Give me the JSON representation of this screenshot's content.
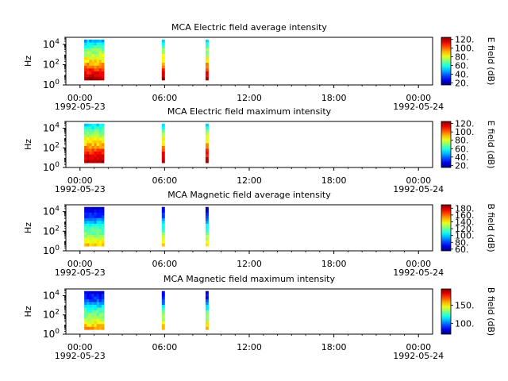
{
  "chart_data": [
    {
      "type": "heatmap",
      "title": "MCA  Electric field average intensity",
      "ylabel": "Hz",
      "yticks": [
        {
          "base": "10",
          "exp": "0"
        },
        {
          "base": "10",
          "exp": "2"
        },
        {
          "base": "10",
          "exp": "4"
        }
      ],
      "ylim_hz": [
        1,
        50000
      ],
      "yscale": "log",
      "xticks": [
        "00:00",
        "06:00",
        "12:00",
        "18:00",
        "00:00"
      ],
      "xdates": [
        "1992-05-23",
        "1992-05-24"
      ],
      "xlim_hours": [
        -1,
        25
      ],
      "colorbar_label": "E field (dB)",
      "colorbar_ticks": [
        "20.",
        "40.",
        "60.",
        "80.",
        "100.",
        "120."
      ],
      "colorbar_ticks_num": [
        20,
        40,
        60,
        80,
        100,
        120
      ],
      "colorbar_range": [
        15,
        125
      ],
      "segments": [
        {
          "start_hours": 0.3,
          "end_hours": 1.7,
          "freq_min_hz": 3,
          "freq_max_hz": 30000
        },
        {
          "start_hours": 5.8,
          "end_hours": 6.0,
          "freq_min_hz": 3,
          "freq_max_hz": 30000
        },
        {
          "start_hours": 8.9,
          "end_hours": 9.1,
          "freq_min_hz": 3,
          "freq_max_hz": 30000
        }
      ],
      "intensity_profile_db": [
        125,
        105,
        85,
        70,
        45
      ],
      "profile_freqs_hz": [
        3,
        30,
        300,
        3000,
        30000
      ]
    },
    {
      "type": "heatmap",
      "title": "MCA  Electric field maximum intensity",
      "ylabel": "Hz",
      "yticks": [
        {
          "base": "10",
          "exp": "0"
        },
        {
          "base": "10",
          "exp": "2"
        },
        {
          "base": "10",
          "exp": "4"
        }
      ],
      "ylim_hz": [
        1,
        50000
      ],
      "yscale": "log",
      "xticks": [
        "00:00",
        "06:00",
        "12:00",
        "18:00",
        "00:00"
      ],
      "xdates": [
        "1992-05-23",
        "1992-05-24"
      ],
      "xlim_hours": [
        -1,
        25
      ],
      "colorbar_label": "E field (dB)",
      "colorbar_ticks": [
        "20.",
        "40.",
        "60.",
        "80.",
        "100.",
        "120."
      ],
      "colorbar_ticks_num": [
        20,
        40,
        60,
        80,
        100,
        120
      ],
      "colorbar_range": [
        15,
        125
      ],
      "segments": [
        {
          "start_hours": 0.3,
          "end_hours": 1.7,
          "freq_min_hz": 3,
          "freq_max_hz": 30000
        },
        {
          "start_hours": 5.8,
          "end_hours": 6.0,
          "freq_min_hz": 3,
          "freq_max_hz": 30000
        },
        {
          "start_hours": 8.9,
          "end_hours": 9.1,
          "freq_min_hz": 3,
          "freq_max_hz": 30000
        }
      ],
      "intensity_profile_db": [
        125,
        108,
        88,
        72,
        50
      ],
      "profile_freqs_hz": [
        3,
        30,
        300,
        3000,
        30000
      ]
    },
    {
      "type": "heatmap",
      "title": "MCA  Magnetic field average intensity",
      "ylabel": "Hz",
      "yticks": [
        {
          "base": "10",
          "exp": "0"
        },
        {
          "base": "10",
          "exp": "2"
        },
        {
          "base": "10",
          "exp": "4"
        }
      ],
      "ylim_hz": [
        1,
        50000
      ],
      "yscale": "log",
      "xticks": [
        "00:00",
        "06:00",
        "12:00",
        "18:00",
        "00:00"
      ],
      "xdates": [
        "1992-05-23",
        "1992-05-24"
      ],
      "xlim_hours": [
        -1,
        25
      ],
      "colorbar_label": "B field (dB)",
      "colorbar_ticks": [
        "60.",
        "80.",
        "100.",
        "120.",
        "140.",
        "160.",
        "180."
      ],
      "colorbar_ticks_num": [
        60,
        80,
        100,
        120,
        140,
        160,
        180
      ],
      "colorbar_range": [
        55,
        190
      ],
      "segments": [
        {
          "start_hours": 0.3,
          "end_hours": 1.7,
          "freq_min_hz": 3,
          "freq_max_hz": 30000
        },
        {
          "start_hours": 5.8,
          "end_hours": 6.0,
          "freq_min_hz": 3,
          "freq_max_hz": 30000
        },
        {
          "start_hours": 8.9,
          "end_hours": 9.1,
          "freq_min_hz": 3,
          "freq_max_hz": 30000
        }
      ],
      "intensity_profile_db": [
        150,
        125,
        110,
        80,
        60
      ],
      "profile_freqs_hz": [
        3,
        30,
        300,
        3000,
        30000
      ]
    },
    {
      "type": "heatmap",
      "title": "MCA  Magnetic field maximum intensity",
      "ylabel": "Hz",
      "yticks": [
        {
          "base": "10",
          "exp": "0"
        },
        {
          "base": "10",
          "exp": "2"
        },
        {
          "base": "10",
          "exp": "4"
        }
      ],
      "ylim_hz": [
        1,
        50000
      ],
      "yscale": "log",
      "xticks": [
        "00:00",
        "06:00",
        "12:00",
        "18:00",
        "00:00"
      ],
      "xdates": [
        "1992-05-23",
        "1992-05-24"
      ],
      "xlim_hours": [
        -1,
        25
      ],
      "colorbar_label": "B field (dB)",
      "colorbar_ticks": [
        "100.",
        "150."
      ],
      "colorbar_ticks_num": [
        100,
        150
      ],
      "colorbar_range": [
        70,
        195
      ],
      "segments": [
        {
          "start_hours": 0.3,
          "end_hours": 1.7,
          "freq_min_hz": 3,
          "freq_max_hz": 30000
        },
        {
          "start_hours": 5.8,
          "end_hours": 6.0,
          "freq_min_hz": 3,
          "freq_max_hz": 30000
        },
        {
          "start_hours": 8.9,
          "end_hours": 9.1,
          "freq_min_hz": 3,
          "freq_max_hz": 30000
        }
      ],
      "intensity_profile_db": [
        165,
        140,
        125,
        95,
        80
      ],
      "profile_freqs_hz": [
        3,
        30,
        300,
        3000,
        30000
      ]
    }
  ]
}
